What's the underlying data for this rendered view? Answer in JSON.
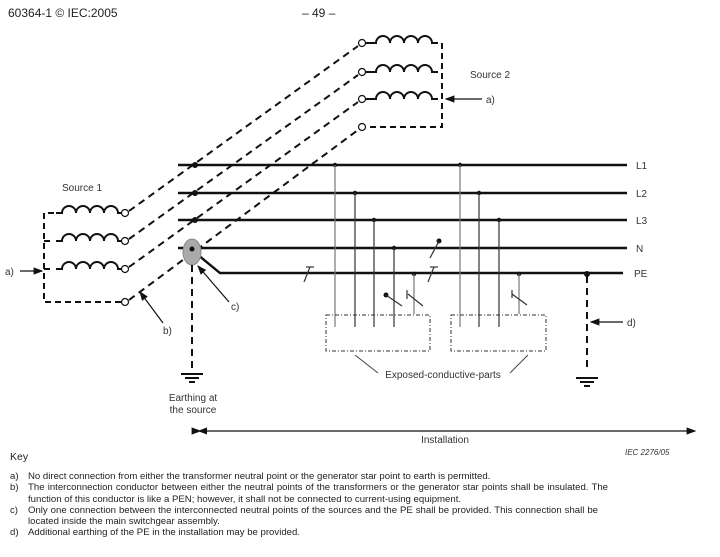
{
  "header": {
    "left": "60364-1 © IEC:2005",
    "center": "– 49 –"
  },
  "figure": {
    "source1": "Source 1",
    "source2": "Source 2",
    "conductors": [
      "L1",
      "L2",
      "L3",
      "N",
      "PE"
    ],
    "callouts": {
      "a1": "a)",
      "a2": "a)",
      "b": "b)",
      "c": "c)",
      "d": "d)"
    },
    "earthing_line1": "Earthing at",
    "earthing_line2": "the source",
    "exposed": "Exposed-conductive-parts",
    "installation": "Installation",
    "figure_id": "IEC  2276/05"
  },
  "key": {
    "title": "Key",
    "items": [
      {
        "label": "a)",
        "text": "No direct connection from either the transformer neutral point or the generator star point to earth is permitted."
      },
      {
        "label": "b)",
        "text": "The interconnection conductor between either the neutral points of the transformers or the generator star points shall be insulated. The function of this conductor is like a PEN; however, it shall not be connected to current-using equipment."
      },
      {
        "label": "c)",
        "text": "Only one connection between the interconnected neutral points of the sources and the PE shall be provided. This connection shall be located inside the main switchgear assembly."
      },
      {
        "label": "d)",
        "text": "Additional earthing of the PE in the installation may be provided."
      }
    ]
  }
}
